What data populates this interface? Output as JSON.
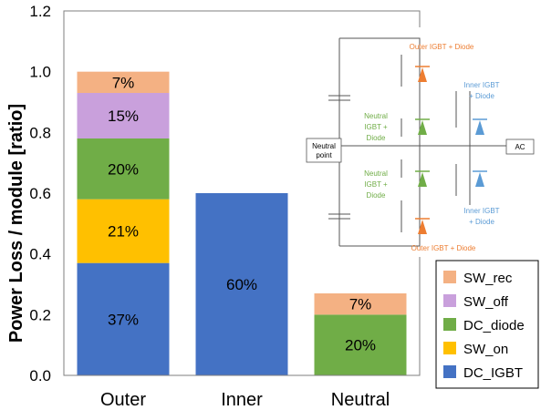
{
  "chart_data": {
    "type": "bar",
    "stacked": true,
    "categories": [
      "Outer",
      "Inner",
      "Neutral"
    ],
    "ylabel": "Power Loss / module [ratio]",
    "ylim": [
      0,
      1.2
    ],
    "yticks": [
      "0.0",
      "0.2",
      "0.4",
      "0.6",
      "0.8",
      "1.0",
      "1.2"
    ],
    "grid": false,
    "legend_position": "bottom-right",
    "series": [
      {
        "name": "DC_IGBT",
        "color": "#4472C4",
        "values": [
          0.37,
          0.6,
          0.0
        ],
        "labels": [
          "37%",
          "60%",
          ""
        ]
      },
      {
        "name": "SW_on",
        "color": "#FFC000",
        "values": [
          0.21,
          0.0,
          0.0
        ],
        "labels": [
          "21%",
          "",
          ""
        ]
      },
      {
        "name": "DC_diode",
        "color": "#70AD47",
        "values": [
          0.2,
          0.0,
          0.2
        ],
        "labels": [
          "20%",
          "",
          "20%"
        ]
      },
      {
        "name": "SW_off",
        "color": "#C9A0DC",
        "values": [
          0.15,
          0.0,
          0.0
        ],
        "labels": [
          "15%",
          "",
          ""
        ]
      },
      {
        "name": "SW_rec",
        "color": "#F4B183",
        "values": [
          0.07,
          0.0,
          0.07
        ],
        "labels": [
          "7%",
          "",
          "7%"
        ]
      }
    ],
    "legend_order": [
      "SW_rec",
      "SW_off",
      "DC_diode",
      "SW_on",
      "DC_IGBT"
    ]
  },
  "inset": {
    "labels": {
      "outer_top": "Outer IGBT + Diode",
      "outer_bottom": "Outer IGBT + Diode",
      "inner_top_1": "Inner IGBT",
      "inner_top_2": "+ Diode",
      "inner_bottom_1": "Inner IGBT",
      "inner_bottom_2": "+ Diode",
      "neutral_top_1": "Neutral",
      "neutral_top_2": "IGBT +",
      "neutral_top_3": "Diode",
      "neutral_bottom_1": "Neutral",
      "neutral_bottom_2": "IGBT +",
      "neutral_bottom_3": "Diode",
      "neutral_point_1": "Neutral",
      "neutral_point_2": "point",
      "ac": "AC"
    },
    "colors": {
      "outer": "#ED7D31",
      "inner": "#5B9BD5",
      "neutral": "#70AD47"
    }
  }
}
